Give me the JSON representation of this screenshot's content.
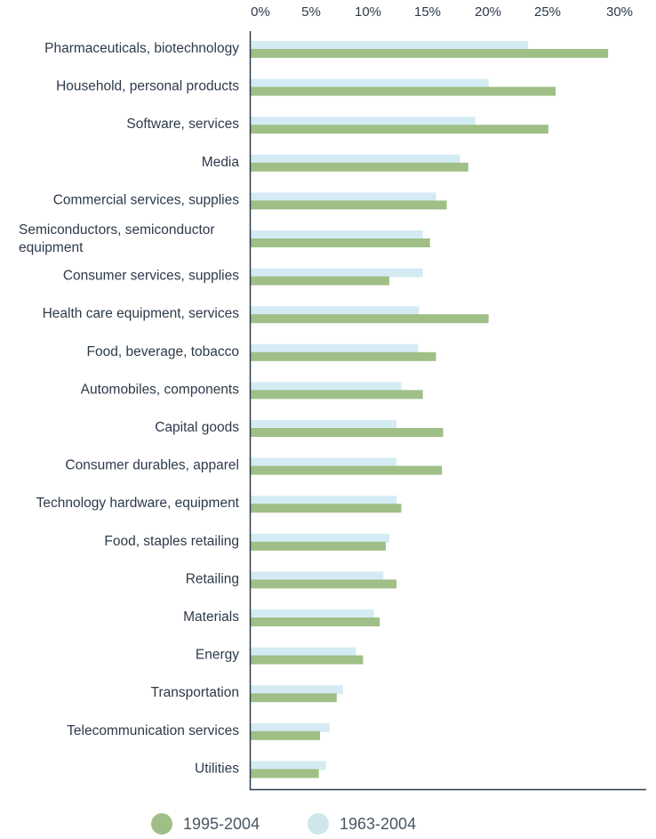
{
  "chart_data": {
    "type": "bar",
    "orientation": "horizontal",
    "x_tick_labels": [
      "0%",
      "5%",
      "10%",
      "15%",
      "20%",
      "25%",
      "30%"
    ],
    "x_ticks": [
      0,
      5,
      10,
      15,
      20,
      25,
      30
    ],
    "xlim": [
      0,
      33
    ],
    "categories": [
      [
        "Pharmaceuticals, biotechnology"
      ],
      [
        "Household, personal products"
      ],
      [
        "Software, services"
      ],
      [
        "Media"
      ],
      [
        "Commercial services, supplies"
      ],
      [
        "Semiconductors, semiconductor",
        "equipment"
      ],
      [
        "Consumer services, supplies"
      ],
      [
        "Health care equipment, services"
      ],
      [
        "Food, beverage, tobacco"
      ],
      [
        "Automobiles, components"
      ],
      [
        "Capital goods"
      ],
      [
        "Consumer durables, apparel"
      ],
      [
        "Technology hardware, equipment"
      ],
      [
        "Food, staples retailing"
      ],
      [
        "Retailing"
      ],
      [
        "Materials"
      ],
      [
        "Energy"
      ],
      [
        "Transportation"
      ],
      [
        "Telecommunication services"
      ],
      [
        "Utilities"
      ]
    ],
    "series": [
      {
        "name": "1963-2004",
        "color": "#d5ebf3",
        "values": [
          23.2,
          19.9,
          18.8,
          17.5,
          15.5,
          14.4,
          14.4,
          14.1,
          14.0,
          12.6,
          12.2,
          12.2,
          12.2,
          11.6,
          11.1,
          10.3,
          8.8,
          7.7,
          6.6,
          6.3
        ]
      },
      {
        "name": "1995-2004",
        "color": "#9fbf87",
        "values": [
          29.9,
          25.5,
          24.9,
          18.2,
          16.4,
          15.0,
          11.6,
          19.9,
          15.5,
          14.4,
          16.1,
          16.0,
          12.6,
          11.3,
          12.2,
          10.8,
          9.4,
          7.2,
          5.8,
          5.7
        ]
      }
    ],
    "legend": [
      {
        "label": "1995-2004",
        "color": "#9fbf87"
      },
      {
        "label": "1963-2004",
        "color": "#cfe6ec"
      }
    ],
    "legend_position": "bottom",
    "grid": false
  }
}
